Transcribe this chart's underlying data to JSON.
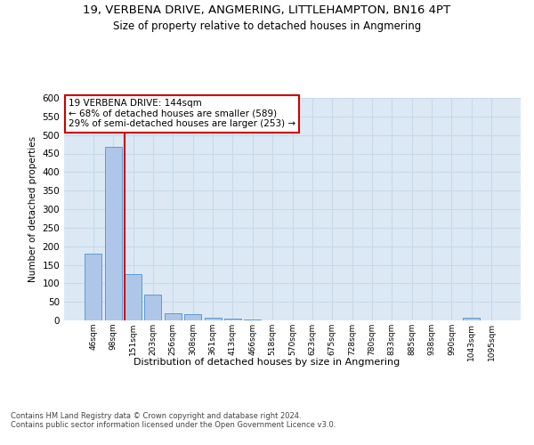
{
  "title1": "19, VERBENA DRIVE, ANGMERING, LITTLEHAMPTON, BN16 4PT",
  "title2": "Size of property relative to detached houses in Angmering",
  "xlabel": "Distribution of detached houses by size in Angmering",
  "ylabel": "Number of detached properties",
  "categories": [
    "46sqm",
    "98sqm",
    "151sqm",
    "203sqm",
    "256sqm",
    "308sqm",
    "361sqm",
    "413sqm",
    "466sqm",
    "518sqm",
    "570sqm",
    "623sqm",
    "675sqm",
    "728sqm",
    "780sqm",
    "833sqm",
    "885sqm",
    "938sqm",
    "990sqm",
    "1043sqm",
    "1095sqm"
  ],
  "values": [
    180,
    467,
    125,
    70,
    20,
    18,
    8,
    5,
    3,
    0,
    0,
    0,
    0,
    0,
    0,
    0,
    0,
    0,
    0,
    8,
    0
  ],
  "bar_color": "#aec6e8",
  "bar_edge_color": "#5b9bd5",
  "grid_color": "#c8d8e8",
  "annotation_line_color": "#cc0000",
  "annotation_box_color": "#cc0000",
  "annotation_text": "19 VERBENA DRIVE: 144sqm\n← 68% of detached houses are smaller (589)\n29% of semi-detached houses are larger (253) →",
  "property_bar_index": 2,
  "ylim": [
    0,
    600
  ],
  "yticks": [
    0,
    50,
    100,
    150,
    200,
    250,
    300,
    350,
    400,
    450,
    500,
    550,
    600
  ],
  "footnote": "Contains HM Land Registry data © Crown copyright and database right 2024.\nContains public sector information licensed under the Open Government Licence v3.0.",
  "bg_color": "#dce9f5",
  "fig_bg_color": "#ffffff",
  "title1_fontsize": 9.5,
  "title2_fontsize": 8.5
}
